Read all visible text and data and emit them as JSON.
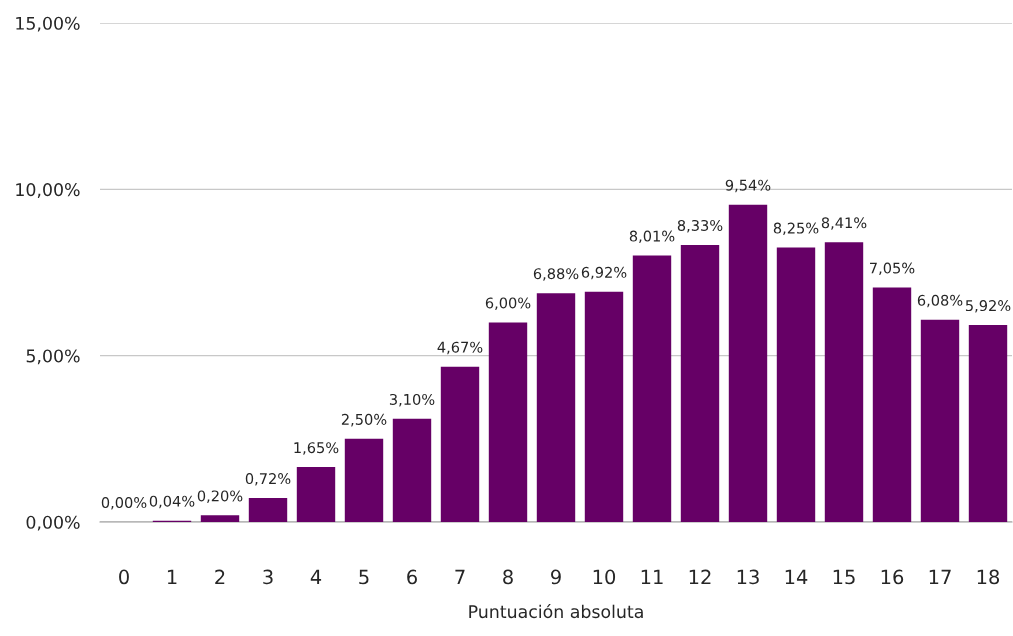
{
  "chart_data": {
    "type": "bar",
    "xlabel": "Puntuación absoluta",
    "categories": [
      "0",
      "1",
      "2",
      "3",
      "4",
      "5",
      "6",
      "7",
      "8",
      "9",
      "10",
      "11",
      "12",
      "13",
      "14",
      "15",
      "16",
      "17",
      "18"
    ],
    "values": [
      0.0,
      0.04,
      0.2,
      0.72,
      1.65,
      2.5,
      3.1,
      4.67,
      6.0,
      6.88,
      6.92,
      8.01,
      8.33,
      9.54,
      8.25,
      8.41,
      7.05,
      6.08,
      5.92
    ],
    "value_labels": [
      "0,00%",
      "0,04%",
      "0,20%",
      "0,72%",
      "1,65%",
      "2,50%",
      "3,10%",
      "4,67%",
      "6,00%",
      "6,88%",
      "6,92%",
      "8,01%",
      "8,33%",
      "9,54%",
      "8,25%",
      "8,41%",
      "7,05%",
      "6,08%",
      "5,92%"
    ],
    "color": "#660066",
    "ylim": [
      0,
      15
    ],
    "yticks": [
      {
        "value": 0,
        "label": "0,00%"
      },
      {
        "value": 5,
        "label": "5,00%"
      },
      {
        "value": 10,
        "label": "10,00%"
      },
      {
        "value": 15,
        "label": "15,00%"
      }
    ],
    "grid": "y",
    "legend": false
  }
}
